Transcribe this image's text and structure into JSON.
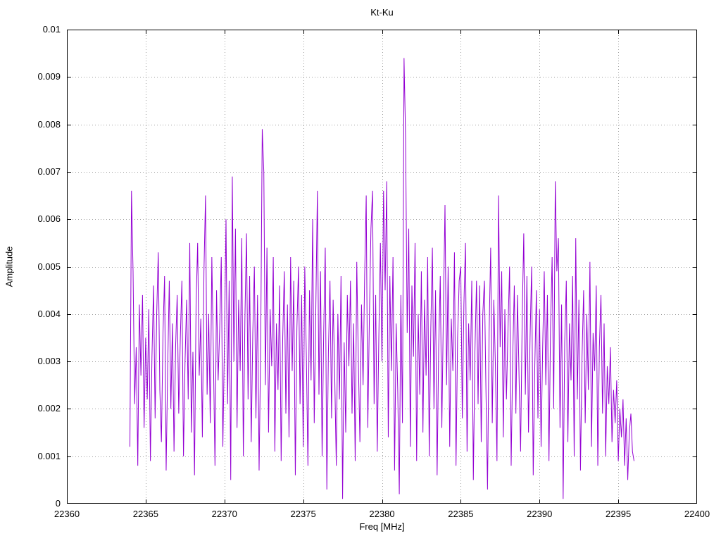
{
  "page": {
    "background": "#ffffff"
  },
  "chart_data": {
    "type": "line",
    "title": "Kt-Ku",
    "xlabel": "Freq [MHz]",
    "ylabel": "Amplitude",
    "xlim": [
      22360,
      22400
    ],
    "ylim": [
      0,
      0.01
    ],
    "grid": true,
    "legend": "none",
    "grid_color": "#9e9e9e",
    "border_color": "#000000",
    "x_ticks": [
      22360,
      22365,
      22370,
      22375,
      22380,
      22385,
      22390,
      22395,
      22400
    ],
    "x_tick_labels": [
      "22360",
      "22365",
      "22370",
      "22375",
      "22380",
      "22385",
      "22390",
      "22395",
      "22400"
    ],
    "y_ticks": [
      0,
      0.001,
      0.002,
      0.003,
      0.004,
      0.005,
      0.006,
      0.007,
      0.008,
      0.009,
      0.01
    ],
    "y_tick_labels": [
      "0",
      "0.001",
      "0.002",
      "0.003",
      "0.004",
      "0.005",
      "0.006",
      "0.007",
      "0.008",
      "0.009",
      "0.01"
    ],
    "series": [
      {
        "name": "Kt-Ku",
        "color": "#9400d3",
        "x_start": 22364.0,
        "x_step": 0.1,
        "y": [
          0.0012,
          0.0066,
          0.0049,
          0.0021,
          0.0033,
          0.0008,
          0.0042,
          0.0027,
          0.0044,
          0.0016,
          0.0035,
          0.0022,
          0.0041,
          0.0009,
          0.0031,
          0.0046,
          0.0018,
          0.004,
          0.0053,
          0.0024,
          0.0013,
          0.0036,
          0.0048,
          0.0007,
          0.0029,
          0.0047,
          0.002,
          0.0038,
          0.0011,
          0.0033,
          0.0044,
          0.0019,
          0.0035,
          0.0047,
          0.001,
          0.003,
          0.0043,
          0.0022,
          0.0055,
          0.0015,
          0.0032,
          0.0006,
          0.0042,
          0.0055,
          0.0027,
          0.0039,
          0.0014,
          0.0049,
          0.0065,
          0.0023,
          0.004,
          0.0017,
          0.0052,
          0.0031,
          0.0008,
          0.0045,
          0.0026,
          0.0037,
          0.0052,
          0.0012,
          0.0034,
          0.006,
          0.0021,
          0.0047,
          0.0005,
          0.0069,
          0.003,
          0.0058,
          0.0016,
          0.0043,
          0.0028,
          0.0056,
          0.001,
          0.0039,
          0.0057,
          0.0022,
          0.0048,
          0.0013,
          0.0036,
          0.005,
          0.0018,
          0.0044,
          0.0007,
          0.0033,
          0.0079,
          0.007,
          0.0025,
          0.0054,
          0.0015,
          0.0041,
          0.0029,
          0.0052,
          0.0011,
          0.0038,
          0.0024,
          0.0046,
          0.0009,
          0.0035,
          0.0049,
          0.0019,
          0.0042,
          0.0014,
          0.0052,
          0.0028,
          0.0047,
          0.0006,
          0.0037,
          0.005,
          0.0021,
          0.0044,
          0.0012,
          0.005,
          0.0031,
          0.0008,
          0.0045,
          0.0026,
          0.006,
          0.0017,
          0.0041,
          0.0066,
          0.0023,
          0.0049,
          0.001,
          0.0036,
          0.0054,
          0.0003,
          0.0032,
          0.0047,
          0.0018,
          0.0043,
          0.0027,
          0.0008,
          0.004,
          0.0022,
          0.0048,
          0.0001,
          0.0034,
          0.0015,
          0.0044,
          0.0029,
          0.0047,
          0.0019,
          0.0038,
          0.0009,
          0.0051,
          0.003,
          0.0013,
          0.0042,
          0.0025,
          0.0048,
          0.0065,
          0.0016,
          0.0039,
          0.0058,
          0.0066,
          0.0021,
          0.0044,
          0.0011,
          0.0035,
          0.0055,
          0.003,
          0.0066,
          0.0045,
          0.0068,
          0.0014,
          0.0048,
          0.0028,
          0.0052,
          0.0007,
          0.0038,
          0.0024,
          0.0002,
          0.0044,
          0.0017,
          0.0094,
          0.0077,
          0.0036,
          0.0058,
          0.0012,
          0.0046,
          0.0031,
          0.0055,
          0.0009,
          0.004,
          0.0023,
          0.0049,
          0.0015,
          0.0043,
          0.0027,
          0.0052,
          0.001,
          0.0037,
          0.0054,
          0.002,
          0.0045,
          0.0006,
          0.0033,
          0.0048,
          0.0016,
          0.0041,
          0.0063,
          0.0025,
          0.005,
          0.0012,
          0.0039,
          0.0028,
          0.0053,
          0.0008,
          0.0035,
          0.0047,
          0.005,
          0.0018,
          0.0042,
          0.0055,
          0.0011,
          0.0038,
          0.0026,
          0.0047,
          0.0005,
          0.0032,
          0.0047,
          0.0021,
          0.0046,
          0.0013,
          0.004,
          0.0047,
          0.0024,
          0.0003,
          0.0036,
          0.0054,
          0.0017,
          0.0043,
          0.0029,
          0.0009,
          0.0065,
          0.0033,
          0.0049,
          0.0014,
          0.0041,
          0.0022,
          0.0037,
          0.005,
          0.0008,
          0.0031,
          0.0046,
          0.0019,
          0.0044,
          0.0027,
          0.0011,
          0.0039,
          0.0057,
          0.0023,
          0.0048,
          0.0015,
          0.0035,
          0.005,
          0.0006,
          0.0029,
          0.0045,
          0.0018,
          0.0041,
          0.0012,
          0.0033,
          0.0049,
          0.0025,
          0.0044,
          0.0009,
          0.0037,
          0.0052,
          0.002,
          0.0068,
          0.0049,
          0.0056,
          0.0016,
          0.0042,
          0.0001,
          0.0034,
          0.0047,
          0.0013,
          0.0038,
          0.0026,
          0.0048,
          0.001,
          0.0056,
          0.0022,
          0.0043,
          0.0007,
          0.0031,
          0.0045,
          0.0017,
          0.004,
          0.0024,
          0.0051,
          0.0012,
          0.0036,
          0.0028,
          0.0046,
          0.0008,
          0.0033,
          0.0044,
          0.0019,
          0.0038,
          0.001,
          0.0029,
          0.0021,
          0.0033,
          0.0013,
          0.0024,
          0.0017,
          0.0026,
          0.0009,
          0.002,
          0.0014,
          0.0022,
          0.0008,
          0.0018,
          0.0005,
          0.0015,
          0.0019,
          0.0011,
          0.0009
        ]
      }
    ]
  }
}
